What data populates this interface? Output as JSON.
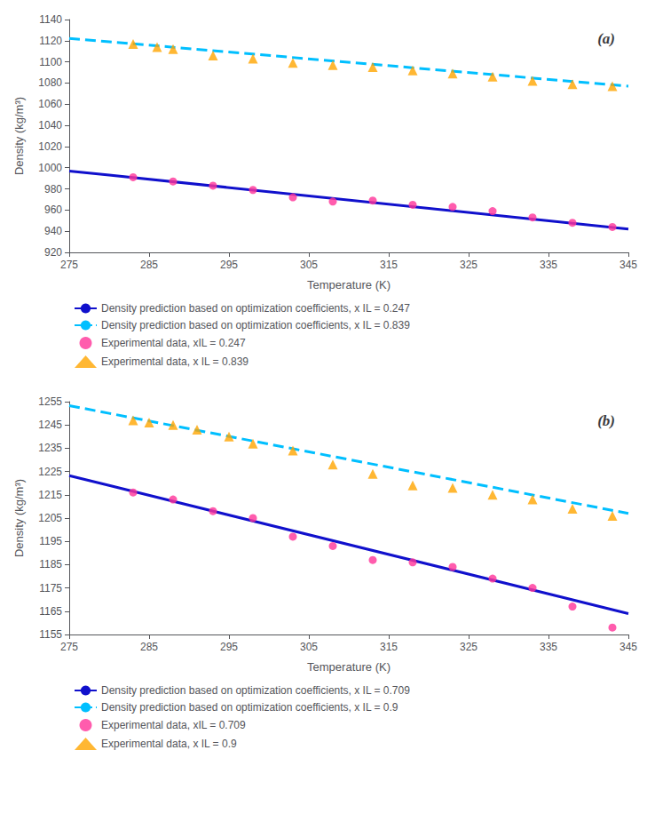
{
  "chart_data": [
    {
      "type": "line",
      "title": "(a)",
      "xlabel": "Temperature (K)",
      "ylabel": "Density (kg/m³)",
      "xlim": [
        275,
        345
      ],
      "ylim": [
        920,
        1140
      ],
      "xticks": [
        275,
        285,
        295,
        305,
        315,
        325,
        335,
        345
      ],
      "yticks": [
        920,
        940,
        960,
        980,
        1000,
        1020,
        1040,
        1060,
        1080,
        1100,
        1120,
        1140
      ],
      "grid": false,
      "legend": "bottom",
      "series": [
        {
          "name": "Density prediction based on optimization coefficients, x IL = 0.247",
          "type": "line",
          "color": "#1010CC",
          "line_style": "solid",
          "x": [
            275,
            280,
            345
          ],
          "values": [
            996.9230769230769,
            993,
            942
          ]
        },
        {
          "name": "Density prediction based on optimization coefficients, x IL = 0.839",
          "type": "line",
          "color": "#00BFFF",
          "line_style": "dashed",
          "x": [
            275,
            280,
            345
          ],
          "values": [
            1122.2307692307693,
            1119,
            1077
          ]
        },
        {
          "name": "Experimental data, xIL = 0.247",
          "type": "scatter",
          "color": "#FF3399",
          "marker": "circle",
          "x": [
            283,
            288,
            293,
            298,
            303,
            308,
            313,
            318,
            323,
            328,
            333,
            338,
            343
          ],
          "values": [
            991,
            987,
            983,
            979,
            972,
            968,
            969,
            965,
            963,
            959,
            953,
            948,
            944
          ]
        },
        {
          "name": "Experimental data, x IL = 0.839",
          "type": "scatter",
          "color": "#FFA500",
          "marker": "triangle",
          "x": [
            283,
            286,
            288,
            293,
            298,
            303,
            308,
            313,
            318,
            323,
            328,
            333,
            338,
            343
          ],
          "values": [
            1117,
            1114,
            1112,
            1106,
            1103,
            1099,
            1097,
            1095,
            1092,
            1089,
            1086,
            1082,
            1079,
            1077
          ]
        }
      ]
    },
    {
      "type": "line",
      "title": "(b)",
      "xlabel": "Temperature (K)",
      "ylabel": "Density (kg/m³)",
      "xlim": [
        275,
        345
      ],
      "ylim": [
        1155,
        1255
      ],
      "xticks": [
        275,
        285,
        295,
        305,
        315,
        325,
        335,
        345
      ],
      "yticks": [
        1155,
        1165,
        1175,
        1185,
        1195,
        1205,
        1215,
        1225,
        1235,
        1245,
        1255
      ],
      "grid": false,
      "legend": "bottom",
      "series": [
        {
          "name": "Density prediction based on optimization coefficients, x IL = 0.709",
          "type": "line",
          "color": "#1010CC",
          "line_style": "solid",
          "x": [
            275,
            280,
            345
          ],
          "values": [
            1223.2307692307693,
            1219,
            1164
          ]
        },
        {
          "name": "Density prediction based on optimization coefficients, x IL = 0.9",
          "type": "line",
          "color": "#00BFFF",
          "line_style": "dashed",
          "x": [
            275,
            280,
            345
          ],
          "values": [
            1253.3076923076924,
            1250,
            1207
          ]
        },
        {
          "name": "Experimental data, xIL = 0.709",
          "type": "scatter",
          "color": "#FF3399",
          "marker": "circle",
          "x": [
            283,
            288,
            293,
            298,
            303,
            308,
            313,
            318,
            323,
            328,
            333,
            338,
            343
          ],
          "values": [
            1216,
            1213,
            1208,
            1205,
            1197,
            1193,
            1187,
            1186,
            1184,
            1179,
            1175,
            1167,
            1158
          ]
        },
        {
          "name": "Experimental data, x IL = 0.9",
          "type": "scatter",
          "color": "#FFA500",
          "marker": "triangle",
          "x": [
            283,
            285,
            288,
            291,
            295,
            298,
            303,
            308,
            313,
            318,
            323,
            328,
            333,
            338,
            343
          ],
          "values": [
            1247,
            1246,
            1245,
            1243,
            1240,
            1237,
            1234,
            1228,
            1224,
            1219,
            1218,
            1215,
            1213,
            1209,
            1206
          ]
        }
      ]
    }
  ]
}
